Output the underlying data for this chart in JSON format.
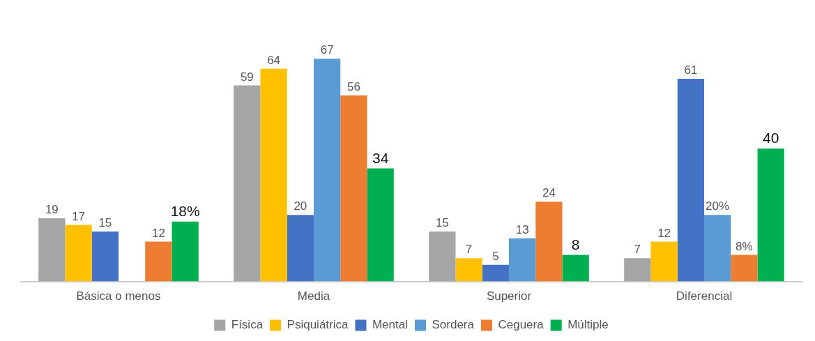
{
  "chart_data": {
    "type": "bar",
    "categories": [
      "Básica o menos",
      "Media",
      "Superior",
      "Diferencial"
    ],
    "series": [
      {
        "name": "Física",
        "color": "#a5a5a5",
        "values": [
          19,
          59,
          15,
          7
        ],
        "value_labels": [
          "19",
          "59",
          "15",
          "7"
        ]
      },
      {
        "name": "Psiquiátrica",
        "color": "#ffc000",
        "values": [
          17,
          64,
          7,
          12
        ],
        "value_labels": [
          "17",
          "64",
          "7",
          "12"
        ]
      },
      {
        "name": "Mental",
        "color": "#4472c4",
        "values": [
          15,
          20,
          5,
          61
        ],
        "value_labels": [
          "15",
          "20",
          "5",
          "61"
        ]
      },
      {
        "name": "Sordera",
        "color": "#5b9bd5",
        "values": [
          null,
          67,
          13,
          20
        ],
        "value_labels": [
          null,
          "67",
          "13",
          "20%"
        ]
      },
      {
        "name": "Ceguera",
        "color": "#ed7d31",
        "values": [
          12,
          56,
          24,
          8
        ],
        "value_labels": [
          "12",
          "56",
          "24",
          "8%"
        ]
      },
      {
        "name": "Múltiple",
        "color": "#00b050",
        "values": [
          18,
          34,
          8,
          40
        ],
        "value_labels": [
          "18%",
          "34",
          "8",
          "40"
        ]
      }
    ],
    "legend": "bottom"
  }
}
